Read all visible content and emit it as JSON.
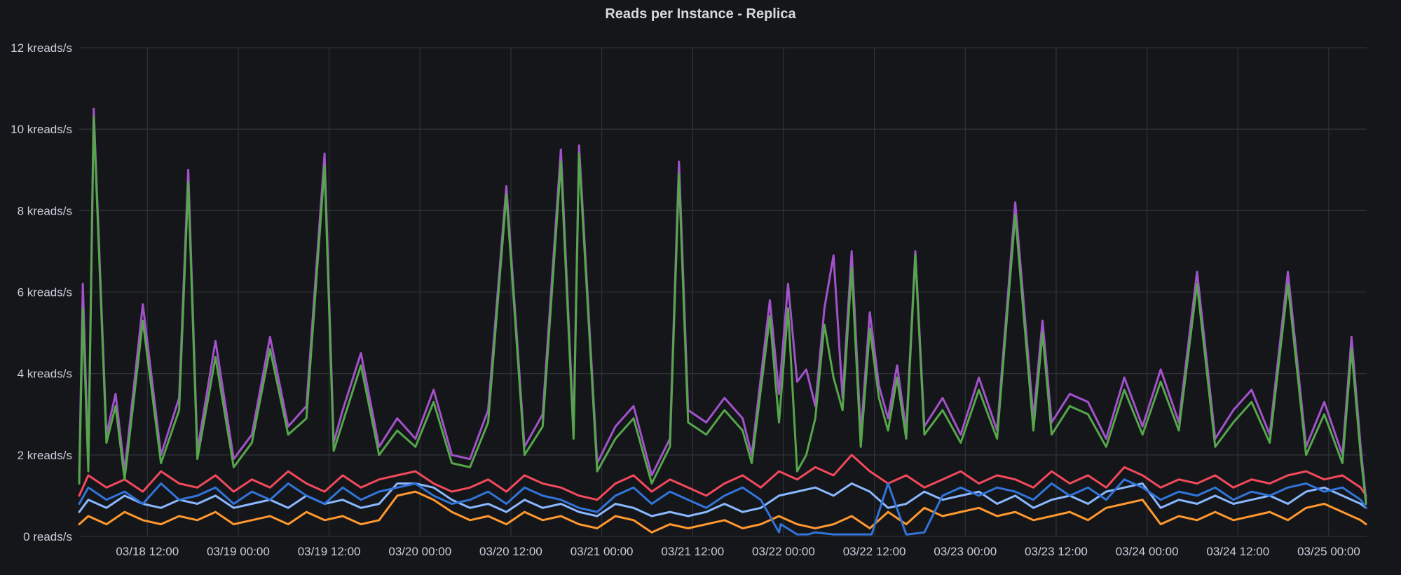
{
  "panel": {
    "title": "Reads per Instance - Replica"
  },
  "chart_data": {
    "type": "line",
    "title": "Reads per Instance - Replica",
    "xlabel": "",
    "ylabel": "",
    "unit": "kreads/s",
    "x_range": [
      "2023-03-18T03:30",
      "2023-03-25T05:30"
    ],
    "xlim": [
      0,
      7.0833
    ],
    "ylim": [
      0,
      12
    ],
    "grid": true,
    "legend": "none",
    "y_ticks": [
      {
        "value": 0,
        "label": "0 reads/s"
      },
      {
        "value": 2,
        "label": "2 kreads/s"
      },
      {
        "value": 4,
        "label": "4 kreads/s"
      },
      {
        "value": 6,
        "label": "6 kreads/s"
      },
      {
        "value": 8,
        "label": "8 kreads/s"
      },
      {
        "value": 10,
        "label": "10 kreads/s"
      },
      {
        "value": 12,
        "label": "12 kreads/s"
      }
    ],
    "x_ticks": [
      {
        "value": 0.375,
        "label": "03/18 12:00"
      },
      {
        "value": 0.875,
        "label": "03/19 00:00"
      },
      {
        "value": 1.375,
        "label": "03/19 12:00"
      },
      {
        "value": 1.875,
        "label": "03/20 00:00"
      },
      {
        "value": 2.375,
        "label": "03/20 12:00"
      },
      {
        "value": 2.875,
        "label": "03/21 00:00"
      },
      {
        "value": 3.375,
        "label": "03/21 12:00"
      },
      {
        "value": 3.875,
        "label": "03/22 00:00"
      },
      {
        "value": 4.375,
        "label": "03/22 12:00"
      },
      {
        "value": 4.875,
        "label": "03/23 00:00"
      },
      {
        "value": 5.375,
        "label": "03/23 12:00"
      },
      {
        "value": 5.875,
        "label": "03/24 00:00"
      },
      {
        "value": 6.375,
        "label": "03/24 12:00"
      },
      {
        "value": 6.875,
        "label": "03/25 00:00"
      }
    ],
    "series": [
      {
        "color": "#ff9830",
        "x": [
          0,
          0.05,
          0.15,
          0.25,
          0.35,
          0.45,
          0.55,
          0.65,
          0.75,
          0.85,
          0.95,
          1.05,
          1.15,
          1.25,
          1.35,
          1.45,
          1.55,
          1.65,
          1.75,
          1.85,
          1.95,
          2.05,
          2.15,
          2.25,
          2.35,
          2.45,
          2.55,
          2.65,
          2.75,
          2.85,
          2.95,
          3.05,
          3.15,
          3.25,
          3.35,
          3.45,
          3.55,
          3.65,
          3.75,
          3.85,
          3.95,
          4.05,
          4.15,
          4.25,
          4.35,
          4.45,
          4.55,
          4.65,
          4.75,
          4.85,
          4.95,
          5.05,
          5.15,
          5.25,
          5.35,
          5.45,
          5.55,
          5.65,
          5.75,
          5.85,
          5.95,
          6.05,
          6.15,
          6.25,
          6.35,
          6.45,
          6.55,
          6.65,
          6.75,
          6.85,
          6.95,
          7.05,
          7.08
        ],
        "values": [
          0.3,
          0.5,
          0.3,
          0.6,
          0.4,
          0.3,
          0.5,
          0.4,
          0.6,
          0.3,
          0.4,
          0.5,
          0.3,
          0.6,
          0.4,
          0.5,
          0.3,
          0.4,
          1.0,
          1.1,
          0.9,
          0.6,
          0.4,
          0.5,
          0.3,
          0.6,
          0.4,
          0.5,
          0.3,
          0.2,
          0.5,
          0.4,
          0.1,
          0.3,
          0.2,
          0.3,
          0.4,
          0.2,
          0.3,
          0.5,
          0.3,
          0.2,
          0.3,
          0.5,
          0.2,
          0.6,
          0.3,
          0.7,
          0.5,
          0.6,
          0.7,
          0.5,
          0.6,
          0.4,
          0.5,
          0.6,
          0.4,
          0.7,
          0.8,
          0.9,
          0.3,
          0.5,
          0.4,
          0.6,
          0.4,
          0.5,
          0.6,
          0.4,
          0.7,
          0.8,
          0.6,
          0.4,
          0.3
        ]
      },
      {
        "color": "#f2495c",
        "x": [
          0,
          0.05,
          0.15,
          0.25,
          0.35,
          0.45,
          0.55,
          0.65,
          0.75,
          0.85,
          0.95,
          1.05,
          1.15,
          1.25,
          1.35,
          1.45,
          1.55,
          1.65,
          1.75,
          1.85,
          1.95,
          2.05,
          2.15,
          2.25,
          2.35,
          2.45,
          2.55,
          2.65,
          2.75,
          2.85,
          2.95,
          3.05,
          3.15,
          3.25,
          3.35,
          3.45,
          3.55,
          3.65,
          3.75,
          3.85,
          3.95,
          4.05,
          4.15,
          4.25,
          4.35,
          4.45,
          4.55,
          4.65,
          4.75,
          4.85,
          4.95,
          5.05,
          5.15,
          5.25,
          5.35,
          5.45,
          5.55,
          5.65,
          5.75,
          5.85,
          5.95,
          6.05,
          6.15,
          6.25,
          6.35,
          6.45,
          6.55,
          6.65,
          6.75,
          6.85,
          6.95,
          7.05,
          7.08
        ],
        "values": [
          1.0,
          1.5,
          1.2,
          1.4,
          1.1,
          1.6,
          1.3,
          1.2,
          1.5,
          1.1,
          1.4,
          1.2,
          1.6,
          1.3,
          1.1,
          1.5,
          1.2,
          1.4,
          1.5,
          1.6,
          1.3,
          1.1,
          1.2,
          1.4,
          1.1,
          1.5,
          1.3,
          1.2,
          1.0,
          0.9,
          1.3,
          1.5,
          1.1,
          1.4,
          1.2,
          1.0,
          1.3,
          1.5,
          1.2,
          1.6,
          1.4,
          1.7,
          1.5,
          2.0,
          1.6,
          1.3,
          1.5,
          1.2,
          1.4,
          1.6,
          1.3,
          1.5,
          1.4,
          1.2,
          1.6,
          1.3,
          1.5,
          1.2,
          1.7,
          1.5,
          1.2,
          1.4,
          1.3,
          1.5,
          1.2,
          1.4,
          1.3,
          1.5,
          1.6,
          1.4,
          1.5,
          1.2,
          1.0
        ]
      },
      {
        "color": "#8ab8ff",
        "x": [
          0,
          0.05,
          0.15,
          0.25,
          0.35,
          0.45,
          0.55,
          0.65,
          0.75,
          0.85,
          0.95,
          1.05,
          1.15,
          1.25,
          1.35,
          1.45,
          1.55,
          1.65,
          1.75,
          1.85,
          1.95,
          2.05,
          2.15,
          2.25,
          2.35,
          2.45,
          2.55,
          2.65,
          2.75,
          2.85,
          2.95,
          3.05,
          3.15,
          3.25,
          3.35,
          3.45,
          3.55,
          3.65,
          3.75,
          3.85,
          3.95,
          4.05,
          4.15,
          4.25,
          4.35,
          4.45,
          4.55,
          4.65,
          4.75,
          4.85,
          4.95,
          5.05,
          5.15,
          5.25,
          5.35,
          5.45,
          5.55,
          5.65,
          5.75,
          5.85,
          5.95,
          6.05,
          6.15,
          6.25,
          6.35,
          6.45,
          6.55,
          6.65,
          6.75,
          6.85,
          6.95,
          7.05,
          7.08
        ],
        "values": [
          0.6,
          0.9,
          0.7,
          1.0,
          0.8,
          0.7,
          0.9,
          0.8,
          1.0,
          0.7,
          0.8,
          0.9,
          0.7,
          1.0,
          0.8,
          0.9,
          0.7,
          0.8,
          1.3,
          1.3,
          1.2,
          0.9,
          0.7,
          0.8,
          0.6,
          0.9,
          0.7,
          0.8,
          0.6,
          0.5,
          0.8,
          0.7,
          0.5,
          0.6,
          0.5,
          0.6,
          0.8,
          0.6,
          0.7,
          1.0,
          1.1,
          1.2,
          1.0,
          1.3,
          1.1,
          0.7,
          0.8,
          1.1,
          0.9,
          1.0,
          1.1,
          0.8,
          1.0,
          0.7,
          0.9,
          1.0,
          0.8,
          1.1,
          1.2,
          1.3,
          0.7,
          0.9,
          0.8,
          1.0,
          0.8,
          0.9,
          1.0,
          0.8,
          1.1,
          1.2,
          1.0,
          0.8,
          0.7
        ]
      },
      {
        "color": "#3274d9",
        "x": [
          0,
          0.05,
          0.15,
          0.25,
          0.35,
          0.45,
          0.55,
          0.65,
          0.75,
          0.85,
          0.95,
          1.05,
          1.15,
          1.25,
          1.35,
          1.45,
          1.55,
          1.65,
          1.75,
          1.85,
          1.95,
          2.05,
          2.15,
          2.25,
          2.35,
          2.45,
          2.55,
          2.65,
          2.75,
          2.85,
          2.95,
          3.05,
          3.15,
          3.25,
          3.35,
          3.45,
          3.55,
          3.65,
          3.75,
          3.85,
          3.86,
          3.95,
          4.0,
          4.01,
          4.05,
          4.15,
          4.25,
          4.35,
          4.36,
          4.45,
          4.55,
          4.56,
          4.65,
          4.75,
          4.85,
          4.95,
          5.05,
          5.15,
          5.25,
          5.35,
          5.45,
          5.55,
          5.65,
          5.75,
          5.85,
          5.95,
          6.05,
          6.15,
          6.25,
          6.35,
          6.45,
          6.55,
          6.65,
          6.75,
          6.85,
          6.95,
          7.05,
          7.08
        ],
        "values": [
          0.8,
          1.2,
          0.9,
          1.1,
          0.8,
          1.3,
          0.9,
          1.0,
          1.2,
          0.8,
          1.1,
          0.9,
          1.3,
          1.0,
          0.8,
          1.2,
          0.9,
          1.1,
          1.2,
          1.3,
          1.0,
          0.8,
          0.9,
          1.1,
          0.8,
          1.2,
          1.0,
          0.9,
          0.7,
          0.6,
          1.0,
          1.2,
          0.8,
          1.1,
          0.9,
          0.7,
          1.0,
          1.2,
          0.9,
          0.1,
          0.3,
          0.05,
          0.05,
          0.05,
          0.1,
          0.05,
          0.05,
          0.05,
          0.05,
          1.3,
          0.05,
          0.05,
          0.1,
          1.0,
          1.2,
          1.0,
          1.2,
          1.1,
          0.9,
          1.3,
          1.0,
          1.2,
          0.9,
          1.4,
          1.2,
          0.9,
          1.1,
          1.0,
          1.2,
          0.9,
          1.1,
          1.0,
          1.2,
          1.3,
          1.1,
          1.2,
          0.9,
          0.7
        ]
      },
      {
        "color": "#a352cc",
        "x": [
          0,
          0.02,
          0.05,
          0.08,
          0.15,
          0.2,
          0.25,
          0.35,
          0.45,
          0.55,
          0.6,
          0.65,
          0.75,
          0.85,
          0.95,
          1.05,
          1.15,
          1.25,
          1.35,
          1.4,
          1.45,
          1.55,
          1.65,
          1.75,
          1.85,
          1.95,
          2.05,
          2.15,
          2.25,
          2.35,
          2.45,
          2.55,
          2.65,
          2.72,
          2.75,
          2.85,
          2.95,
          3.05,
          3.15,
          3.25,
          3.3,
          3.35,
          3.45,
          3.55,
          3.65,
          3.7,
          3.8,
          3.85,
          3.9,
          3.95,
          4.0,
          4.05,
          4.1,
          4.15,
          4.2,
          4.25,
          4.3,
          4.35,
          4.4,
          4.45,
          4.5,
          4.55,
          4.6,
          4.65,
          4.75,
          4.85,
          4.95,
          5.05,
          5.15,
          5.25,
          5.3,
          5.35,
          5.45,
          5.55,
          5.65,
          5.75,
          5.85,
          5.95,
          6.05,
          6.15,
          6.25,
          6.35,
          6.45,
          6.55,
          6.65,
          6.75,
          6.85,
          6.95,
          7.0,
          7.05,
          7.08
        ],
        "values": [
          1.5,
          6.2,
          1.8,
          10.5,
          2.5,
          3.5,
          1.6,
          5.7,
          2.0,
          3.4,
          9.0,
          2.1,
          4.8,
          1.9,
          2.5,
          4.9,
          2.7,
          3.2,
          9.4,
          2.3,
          3.1,
          4.5,
          2.2,
          2.9,
          2.4,
          3.6,
          2.0,
          1.9,
          3.1,
          8.6,
          2.2,
          3.0,
          9.5,
          2.6,
          9.6,
          1.8,
          2.7,
          3.2,
          1.5,
          2.4,
          9.2,
          3.1,
          2.8,
          3.4,
          2.9,
          2.0,
          5.8,
          3.5,
          6.2,
          3.8,
          4.1,
          3.2,
          5.6,
          6.9,
          3.4,
          7.0,
          2.5,
          5.5,
          3.7,
          2.9,
          4.2,
          2.6,
          7.0,
          2.7,
          3.4,
          2.5,
          3.9,
          2.6,
          8.2,
          2.9,
          5.3,
          2.8,
          3.5,
          3.3,
          2.4,
          3.9,
          2.7,
          4.1,
          2.8,
          6.5,
          2.4,
          3.1,
          3.6,
          2.5,
          6.5,
          2.2,
          3.3,
          2.0,
          4.9,
          2.2,
          0.9
        ]
      },
      {
        "color": "#56a64b",
        "x": [
          0,
          0.02,
          0.05,
          0.08,
          0.15,
          0.2,
          0.25,
          0.35,
          0.45,
          0.55,
          0.6,
          0.65,
          0.75,
          0.85,
          0.95,
          1.05,
          1.15,
          1.25,
          1.35,
          1.4,
          1.45,
          1.55,
          1.65,
          1.75,
          1.85,
          1.95,
          2.05,
          2.15,
          2.25,
          2.35,
          2.45,
          2.55,
          2.65,
          2.72,
          2.75,
          2.85,
          2.95,
          3.05,
          3.15,
          3.25,
          3.3,
          3.35,
          3.45,
          3.55,
          3.65,
          3.7,
          3.8,
          3.85,
          3.9,
          3.95,
          4.0,
          4.05,
          4.1,
          4.15,
          4.2,
          4.25,
          4.3,
          4.35,
          4.4,
          4.45,
          4.5,
          4.55,
          4.6,
          4.65,
          4.75,
          4.85,
          4.95,
          5.05,
          5.15,
          5.25,
          5.3,
          5.35,
          5.45,
          5.55,
          5.65,
          5.75,
          5.85,
          5.95,
          6.05,
          6.15,
          6.25,
          6.35,
          6.45,
          6.55,
          6.65,
          6.75,
          6.85,
          6.95,
          7.0,
          7.05,
          7.08
        ],
        "values": [
          1.3,
          5.6,
          1.6,
          10.3,
          2.3,
          3.2,
          1.4,
          5.3,
          1.8,
          3.1,
          8.7,
          1.9,
          4.4,
          1.7,
          2.3,
          4.6,
          2.5,
          2.9,
          9.1,
          2.1,
          2.8,
          4.2,
          2.0,
          2.6,
          2.2,
          3.3,
          1.8,
          1.7,
          2.8,
          8.4,
          2.0,
          2.7,
          9.2,
          2.4,
          9.4,
          1.6,
          2.4,
          2.9,
          1.3,
          2.2,
          8.9,
          2.8,
          2.5,
          3.1,
          2.6,
          1.8,
          5.4,
          2.8,
          5.6,
          1.6,
          2.0,
          2.9,
          5.2,
          3.9,
          3.1,
          6.6,
          2.2,
          5.1,
          3.4,
          2.6,
          3.9,
          2.4,
          6.9,
          2.5,
          3.1,
          2.3,
          3.6,
          2.4,
          7.9,
          2.6,
          5.0,
          2.5,
          3.2,
          3.0,
          2.2,
          3.6,
          2.5,
          3.8,
          2.6,
          6.2,
          2.2,
          2.8,
          3.3,
          2.3,
          6.2,
          2.0,
          3.0,
          1.8,
          4.6,
          2.0,
          0.8
        ]
      }
    ]
  }
}
